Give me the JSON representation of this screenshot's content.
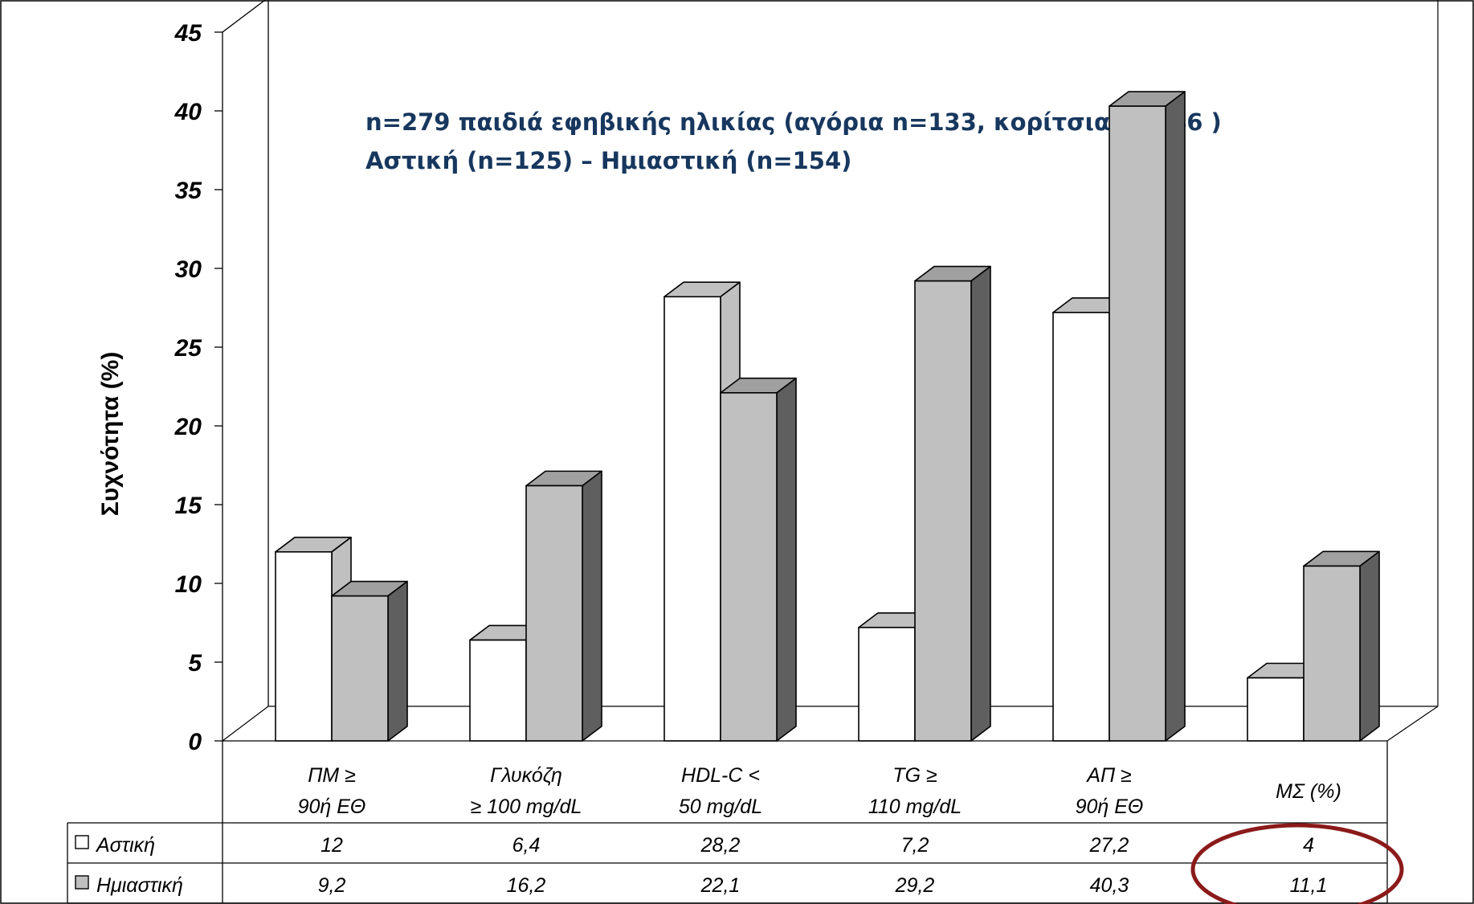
{
  "chart_data": {
    "type": "bar",
    "title": "",
    "annotation_lines": [
      "n=279 παιδιά εφηβικής ηλικίας (αγόρια n=133, κορίτσια n=146 )",
      "Αστική (n=125) – Ημιαστική (n=154)"
    ],
    "ylabel": "Συχνότητα (%)",
    "xlabel": "",
    "ylim": [
      0,
      45
    ],
    "yticks": [
      "0",
      "5",
      "10",
      "15",
      "20",
      "25",
      "30",
      "35",
      "40",
      "45"
    ],
    "categories": [
      [
        "ΠΜ ≥",
        "90ή ΕΘ"
      ],
      [
        "Γλυκόζη",
        "≥ 100 mg/dL"
      ],
      [
        "HDL-C <",
        "50 mg/dL"
      ],
      [
        "TG ≥",
        "110 mg/dL"
      ],
      [
        "ΑΠ ≥",
        "90ή ΕΘ"
      ],
      [
        "ΜΣ (%)"
      ]
    ],
    "series": [
      {
        "name": "Αστική",
        "values": [
          12,
          6.4,
          28.2,
          7.2,
          27.2,
          4
        ],
        "value_labels": [
          "12",
          "6,4",
          "28,2",
          "7,2",
          "27,2",
          "4"
        ],
        "color": "#ffffff"
      },
      {
        "name": "Ημιαστική",
        "values": [
          9.2,
          16.2,
          22.1,
          29.2,
          40.3,
          11.1
        ],
        "value_labels": [
          "9,2",
          "16,2",
          "22,1",
          "29,2",
          "40,3",
          "11,1"
        ],
        "color": "#c0c0c0"
      }
    ],
    "grid": false,
    "style": "3d-column with data table",
    "highlight": {
      "shape": "ellipse",
      "category_index": 5,
      "color": "#8b1a1a"
    }
  }
}
